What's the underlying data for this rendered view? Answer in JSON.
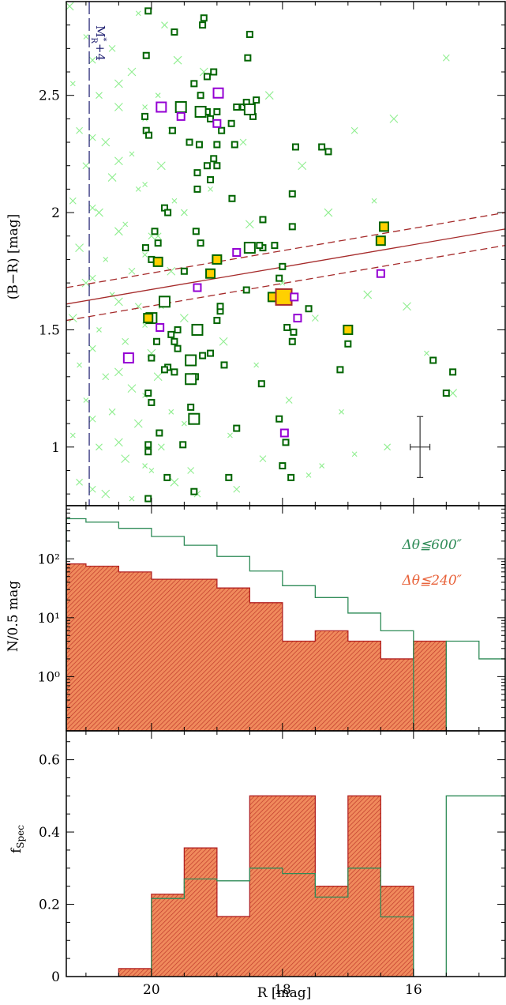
{
  "colors": {
    "bg_cross": "#90ee90",
    "member": "#006400",
    "yellow": "#ffd000",
    "yellow_edge": "#006400",
    "purple": "#9400d3",
    "red_line": "#a52a2a",
    "hist_wide": "#2e8b57",
    "hist_narrow_fill": "#e8623a",
    "hist_narrow_edge": "#b22222",
    "limit_line": "#1a1a6e",
    "err_bar": "#333333"
  },
  "chart_data": [
    {
      "type": "scatter",
      "xlabel": "",
      "ylabel": "(B−R) [mag]",
      "xlim": [
        21.3,
        14.6
      ],
      "ylim": [
        0.75,
        2.9
      ],
      "xticks": [
        20,
        18,
        16
      ],
      "yticks": [
        1,
        1.5,
        2,
        2.5
      ],
      "ytick_labels": [
        "1",
        "1.5",
        "2",
        "2.5"
      ],
      "annotation": "M*R+4",
      "annotation_parts": {
        "base": "M",
        "sup": "*",
        "sub": "R",
        "rest": "+4"
      },
      "limit_x": 20.95,
      "red_sequence": {
        "x": [
          21.3,
          14.6
        ],
        "y": [
          1.61,
          1.93
        ],
        "width": 0.07
      },
      "error_bar": {
        "x": 15.9,
        "y": 1.0,
        "xerr": 0.15,
        "yerr": 0.13
      },
      "background_crosses": [
        [
          21.0,
          2.75
        ],
        [
          20.6,
          2.7
        ],
        [
          20.3,
          2.6
        ],
        [
          21.2,
          2.55
        ],
        [
          20.8,
          2.5
        ],
        [
          20.5,
          2.45
        ],
        [
          20.1,
          2.4
        ],
        [
          21.1,
          2.35
        ],
        [
          20.7,
          2.3
        ],
        [
          20.3,
          2.25
        ],
        [
          21.0,
          2.2
        ],
        [
          20.6,
          2.15
        ],
        [
          20.2,
          2.1
        ],
        [
          21.2,
          2.05
        ],
        [
          20.8,
          2.0
        ],
        [
          20.4,
          1.95
        ],
        [
          20.0,
          1.9
        ],
        [
          21.1,
          1.85
        ],
        [
          20.7,
          1.8
        ],
        [
          20.3,
          1.75
        ],
        [
          21.0,
          1.7
        ],
        [
          20.6,
          1.65
        ],
        [
          20.2,
          1.6
        ],
        [
          21.2,
          1.55
        ],
        [
          20.8,
          1.5
        ],
        [
          20.4,
          1.45
        ],
        [
          20.0,
          1.4
        ],
        [
          21.1,
          1.35
        ],
        [
          20.7,
          1.3
        ],
        [
          20.3,
          1.25
        ],
        [
          21.0,
          1.2
        ],
        [
          20.6,
          1.15
        ],
        [
          20.2,
          1.1
        ],
        [
          21.2,
          1.05
        ],
        [
          20.8,
          1.0
        ],
        [
          20.4,
          0.95
        ],
        [
          20.0,
          0.9
        ],
        [
          21.1,
          0.85
        ],
        [
          20.7,
          0.8
        ],
        [
          20.3,
          0.78
        ],
        [
          20.9,
          2.65
        ],
        [
          20.5,
          2.55
        ],
        [
          20.1,
          2.45
        ],
        [
          20.9,
          2.32
        ],
        [
          20.5,
          2.22
        ],
        [
          20.1,
          2.12
        ],
        [
          20.9,
          2.02
        ],
        [
          20.5,
          1.92
        ],
        [
          20.1,
          1.82
        ],
        [
          20.9,
          1.72
        ],
        [
          20.5,
          1.62
        ],
        [
          20.1,
          1.52
        ],
        [
          20.9,
          1.42
        ],
        [
          20.5,
          1.32
        ],
        [
          20.1,
          1.22
        ],
        [
          20.9,
          1.12
        ],
        [
          20.5,
          1.02
        ],
        [
          20.1,
          0.92
        ],
        [
          20.9,
          0.82
        ],
        [
          21.25,
          2.88
        ],
        [
          20.2,
          2.85
        ],
        [
          19.8,
          2.8
        ],
        [
          19.6,
          2.65
        ],
        [
          19.9,
          2.5
        ],
        [
          19.7,
          2.35
        ],
        [
          19.85,
          2.2
        ],
        [
          19.65,
          2.05
        ],
        [
          19.9,
          1.9
        ],
        [
          19.7,
          1.75
        ],
        [
          19.85,
          1.6
        ],
        [
          19.65,
          1.45
        ],
        [
          19.9,
          1.3
        ],
        [
          19.7,
          1.15
        ],
        [
          19.85,
          1.0
        ],
        [
          19.65,
          0.85
        ],
        [
          19.5,
          2.45
        ],
        [
          19.5,
          2.0
        ],
        [
          19.5,
          1.55
        ],
        [
          19.5,
          1.1
        ],
        [
          19.4,
          0.9
        ],
        [
          19.2,
          2.6
        ],
        [
          19.1,
          2.1
        ],
        [
          19.0,
          1.8
        ],
        [
          18.9,
          1.45
        ],
        [
          18.8,
          1.05
        ],
        [
          18.6,
          2.3
        ],
        [
          18.5,
          1.95
        ],
        [
          18.4,
          1.35
        ],
        [
          18.3,
          0.95
        ],
        [
          18.2,
          2.5
        ],
        [
          18.0,
          1.7
        ],
        [
          17.9,
          1.2
        ],
        [
          17.7,
          2.2
        ],
        [
          17.6,
          0.88
        ],
        [
          17.5,
          1.55
        ],
        [
          17.3,
          2.0
        ],
        [
          17.1,
          1.15
        ],
        [
          16.9,
          2.35
        ],
        [
          16.7,
          1.65
        ],
        [
          16.6,
          2.05
        ],
        [
          16.4,
          1.0
        ],
        [
          16.1,
          1.6
        ],
        [
          15.8,
          1.4
        ],
        [
          15.5,
          2.66
        ],
        [
          16.3,
          2.4
        ],
        [
          17.4,
          0.92
        ],
        [
          18.7,
          0.82
        ],
        [
          15.4,
          1.23
        ],
        [
          16.9,
          0.97
        ],
        [
          19.3,
          0.8
        ]
      ],
      "members": [
        [
          20.05,
          2.86
        ],
        [
          19.2,
          2.83
        ],
        [
          19.22,
          2.8
        ],
        [
          18.5,
          2.76
        ],
        [
          19.65,
          2.77
        ],
        [
          20.08,
          2.67
        ],
        [
          18.53,
          2.66
        ],
        [
          19.05,
          2.6
        ],
        [
          19.15,
          2.58
        ],
        [
          19.35,
          2.55
        ],
        [
          19.25,
          2.5
        ],
        [
          18.6,
          2.45
        ],
        [
          18.55,
          2.47
        ],
        [
          18.4,
          2.48
        ],
        [
          18.7,
          2.45
        ],
        [
          19.0,
          2.43
        ],
        [
          19.1,
          2.4
        ],
        [
          19.15,
          2.43
        ],
        [
          18.78,
          2.38
        ],
        [
          18.45,
          2.41
        ],
        [
          20.1,
          2.41
        ],
        [
          20.08,
          2.35
        ],
        [
          20.04,
          2.33
        ],
        [
          19.68,
          2.35
        ],
        [
          18.93,
          2.35
        ],
        [
          19.0,
          2.29
        ],
        [
          19.27,
          2.29
        ],
        [
          19.42,
          2.3
        ],
        [
          17.8,
          2.28
        ],
        [
          18.73,
          2.29
        ],
        [
          17.4,
          2.28
        ],
        [
          17.3,
          2.26
        ],
        [
          19.05,
          2.23
        ],
        [
          19.15,
          2.2
        ],
        [
          19.0,
          2.2
        ],
        [
          19.1,
          2.14
        ],
        [
          19.3,
          2.17
        ],
        [
          19.3,
          2.1
        ],
        [
          17.85,
          2.08
        ],
        [
          18.77,
          2.06
        ],
        [
          19.8,
          2.02
        ],
        [
          19.75,
          2.0
        ],
        [
          18.3,
          1.97
        ],
        [
          17.85,
          1.94
        ],
        [
          19.95,
          1.92
        ],
        [
          19.32,
          1.92
        ],
        [
          19.9,
          1.87
        ],
        [
          20.09,
          1.85
        ],
        [
          19.25,
          1.87
        ],
        [
          18.3,
          1.85
        ],
        [
          18.35,
          1.86
        ],
        [
          18.12,
          1.86
        ],
        [
          20.0,
          1.8
        ],
        [
          18.0,
          1.77
        ],
        [
          18.05,
          1.72
        ],
        [
          19.5,
          1.75
        ],
        [
          18.55,
          1.67
        ],
        [
          18.95,
          1.58
        ],
        [
          18.95,
          1.6
        ],
        [
          17.6,
          1.59
        ],
        [
          19.0,
          1.54
        ],
        [
          19.6,
          1.5
        ],
        [
          19.7,
          1.48
        ],
        [
          19.92,
          1.45
        ],
        [
          19.65,
          1.45
        ],
        [
          17.85,
          1.45
        ],
        [
          17.93,
          1.51
        ],
        [
          17.0,
          1.44
        ],
        [
          17.83,
          1.49
        ],
        [
          19.6,
          1.42
        ],
        [
          19.22,
          1.39
        ],
        [
          19.1,
          1.4
        ],
        [
          20.0,
          1.38
        ],
        [
          19.75,
          1.34
        ],
        [
          19.8,
          1.33
        ],
        [
          19.33,
          1.3
        ],
        [
          18.89,
          1.35
        ],
        [
          19.65,
          1.32
        ],
        [
          18.32,
          1.27
        ],
        [
          17.12,
          1.33
        ],
        [
          20.05,
          1.23
        ],
        [
          20.0,
          1.19
        ],
        [
          19.4,
          1.17
        ],
        [
          19.32,
          1.12
        ],
        [
          18.05,
          1.12
        ],
        [
          18.7,
          1.08
        ],
        [
          19.88,
          1.06
        ],
        [
          20.05,
          1.01
        ],
        [
          20.05,
          0.98
        ],
        [
          17.95,
          1.02
        ],
        [
          19.52,
          1.01
        ],
        [
          18.0,
          0.92
        ],
        [
          18.82,
          0.87
        ],
        [
          19.35,
          0.81
        ],
        [
          20.05,
          0.78
        ],
        [
          19.76,
          0.87
        ],
        [
          17.87,
          0.87
        ],
        [
          15.7,
          1.37
        ],
        [
          15.4,
          1.32
        ],
        [
          15.5,
          1.23
        ]
      ],
      "members_large": [
        [
          19.55,
          2.45
        ],
        [
          19.25,
          2.43
        ],
        [
          18.5,
          2.44
        ],
        [
          19.3,
          1.5
        ],
        [
          19.4,
          1.37
        ],
        [
          19.4,
          1.29
        ],
        [
          20.0,
          1.55
        ],
        [
          19.8,
          1.62
        ],
        [
          19.35,
          1.12
        ],
        [
          18.5,
          1.85
        ]
      ],
      "yellow": [
        [
          19.0,
          1.8
        ],
        [
          19.1,
          1.74
        ],
        [
          19.9,
          1.79
        ],
        [
          18.15,
          1.64
        ],
        [
          20.05,
          1.55
        ],
        [
          17.0,
          1.5
        ],
        [
          16.5,
          1.88
        ],
        [
          16.45,
          1.94
        ]
      ],
      "yellow_large": [
        [
          17.98,
          1.64
        ]
      ],
      "purple": [
        [
          19.85,
          2.45
        ],
        [
          19.55,
          2.41
        ],
        [
          18.98,
          2.51
        ],
        [
          19.0,
          2.38
        ],
        [
          18.7,
          1.83
        ],
        [
          19.3,
          1.68
        ],
        [
          19.87,
          1.51
        ],
        [
          17.82,
          1.64
        ],
        [
          17.77,
          1.55
        ],
        [
          20.35,
          1.38
        ],
        [
          17.97,
          1.06
        ],
        [
          16.5,
          1.74
        ]
      ]
    },
    {
      "type": "histogram",
      "xlabel": "",
      "ylabel": "N/0.5 mag",
      "yscale": "log",
      "ylim": [
        0.12,
        800
      ],
      "yticks": [
        1,
        10,
        100
      ],
      "ytick_labels": [
        "10⁰",
        "10¹",
        "10²"
      ],
      "legend": [
        {
          "label": "Δθ≦600″",
          "color": "#2e8b57"
        },
        {
          "label": "Δθ≦240″",
          "color": "#e8623a"
        }
      ],
      "bins": [
        21.5,
        21.0,
        20.5,
        20.0,
        19.5,
        19.0,
        18.5,
        18.0,
        17.5,
        17.0,
        16.5,
        16.0,
        15.5,
        15.0,
        14.5
      ],
      "series": [
        {
          "name": "Δθ≦600″",
          "values": [
            480,
            420,
            330,
            240,
            170,
            110,
            62,
            35,
            22,
            12,
            6,
            0,
            4,
            2
          ]
        },
        {
          "name": "Δθ≦240″",
          "values": [
            82,
            75,
            60,
            45,
            45,
            32,
            18,
            4,
            6,
            4,
            2,
            4,
            0,
            0
          ]
        }
      ]
    },
    {
      "type": "histogram",
      "xlabel": "R [mag]",
      "ylabel": "fSpec",
      "ylabel_parts": {
        "base": "f",
        "sub": "Spec"
      },
      "xlim": [
        21.3,
        14.6
      ],
      "ylim": [
        0,
        0.68
      ],
      "yticks": [
        0,
        0.2,
        0.4,
        0.6
      ],
      "ytick_labels": [
        "0",
        "0.2",
        "0.4",
        "0.6"
      ],
      "xticks": [
        20,
        18,
        16
      ],
      "xtick_labels": [
        "20",
        "18",
        "16"
      ],
      "bins": [
        21.5,
        21.0,
        20.5,
        20.0,
        19.5,
        19.0,
        18.5,
        18.0,
        17.5,
        17.0,
        16.5,
        16.0,
        15.5,
        15.0,
        14.5
      ],
      "series": [
        {
          "name": "Δθ≦600″",
          "values": [
            0,
            0,
            0,
            0.216,
            0.27,
            0.265,
            0.3,
            0.285,
            0.22,
            0.3,
            0.165,
            0,
            0.5,
            0.5
          ]
        },
        {
          "name": "Δθ≦240″",
          "values": [
            0,
            0,
            0.022,
            0.228,
            0.356,
            0.166,
            0.5,
            0.5,
            0.25,
            0.5,
            0.25,
            0,
            0,
            0
          ]
        }
      ]
    }
  ]
}
